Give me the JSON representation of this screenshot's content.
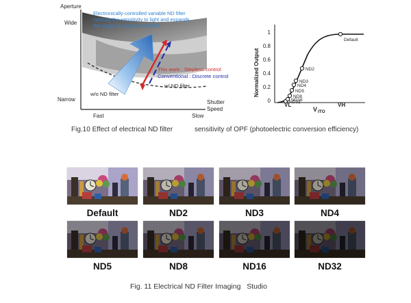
{
  "fig10": {
    "left": {
      "y_axis_label": "Aperture",
      "y_top": "Wide",
      "y_bottom": "Narrow",
      "x_left": "Fast",
      "x_right": "Slow",
      "x_axis_label_1": "Shutter",
      "x_axis_label_2": "Speed",
      "blue_note_1": "Electronically-controlled variable ND filter",
      "blue_note_2": "controls the sensitivity to light and expands",
      "blue_note_3": "the range of exposure control.",
      "red_note": "This work : Stepless control",
      "navy_note": "Conventional : Discrete control",
      "label_with_nd": "w/ ND filter",
      "label_without_nd": "w/o ND filter"
    },
    "right": {
      "y_axis_label": "Normalized Output",
      "x_axis_label": "V",
      "x_axis_sub": "ITO",
      "y_tick_1": "1",
      "y_tick_08": "0.8",
      "y_tick_06": "0.6",
      "y_tick_04": "0.4",
      "y_tick_02": "0.2",
      "y_tick_0": "0",
      "vl": "VL",
      "vh": "VH",
      "point_labels": [
        "Default",
        "ND2",
        "ND3",
        "ND4",
        "ND5",
        "ND8",
        "ND16",
        "ND32"
      ]
    },
    "caption_left": "Fig.10 Effect of electrical ND filter",
    "caption_right": "sensitivity of OPF (photoelectric conversion efficiency)"
  },
  "fig11": {
    "labels": [
      "Default",
      "ND2",
      "ND3",
      "ND4",
      "ND5",
      "ND8",
      "ND16",
      "ND32"
    ],
    "caption": "Fig. 11 Electrical ND Filter Imaging   Studio"
  },
  "chart_data": {
    "type": "line",
    "x": [
      "VL",
      "",
      "",
      "",
      "",
      "",
      "",
      "VH"
    ],
    "series": [
      {
        "values": [
          0.02,
          0.05,
          0.1,
          0.18,
          0.26,
          0.32,
          0.5,
          1.0
        ]
      }
    ],
    "ylim": [
      0,
      1
    ],
    "ylabel": "Normalized Output",
    "xlabel": "VITO"
  },
  "colors": {
    "blue_text": "#2e7fd0",
    "red": "#d42a2a",
    "navy": "#2230a8"
  }
}
